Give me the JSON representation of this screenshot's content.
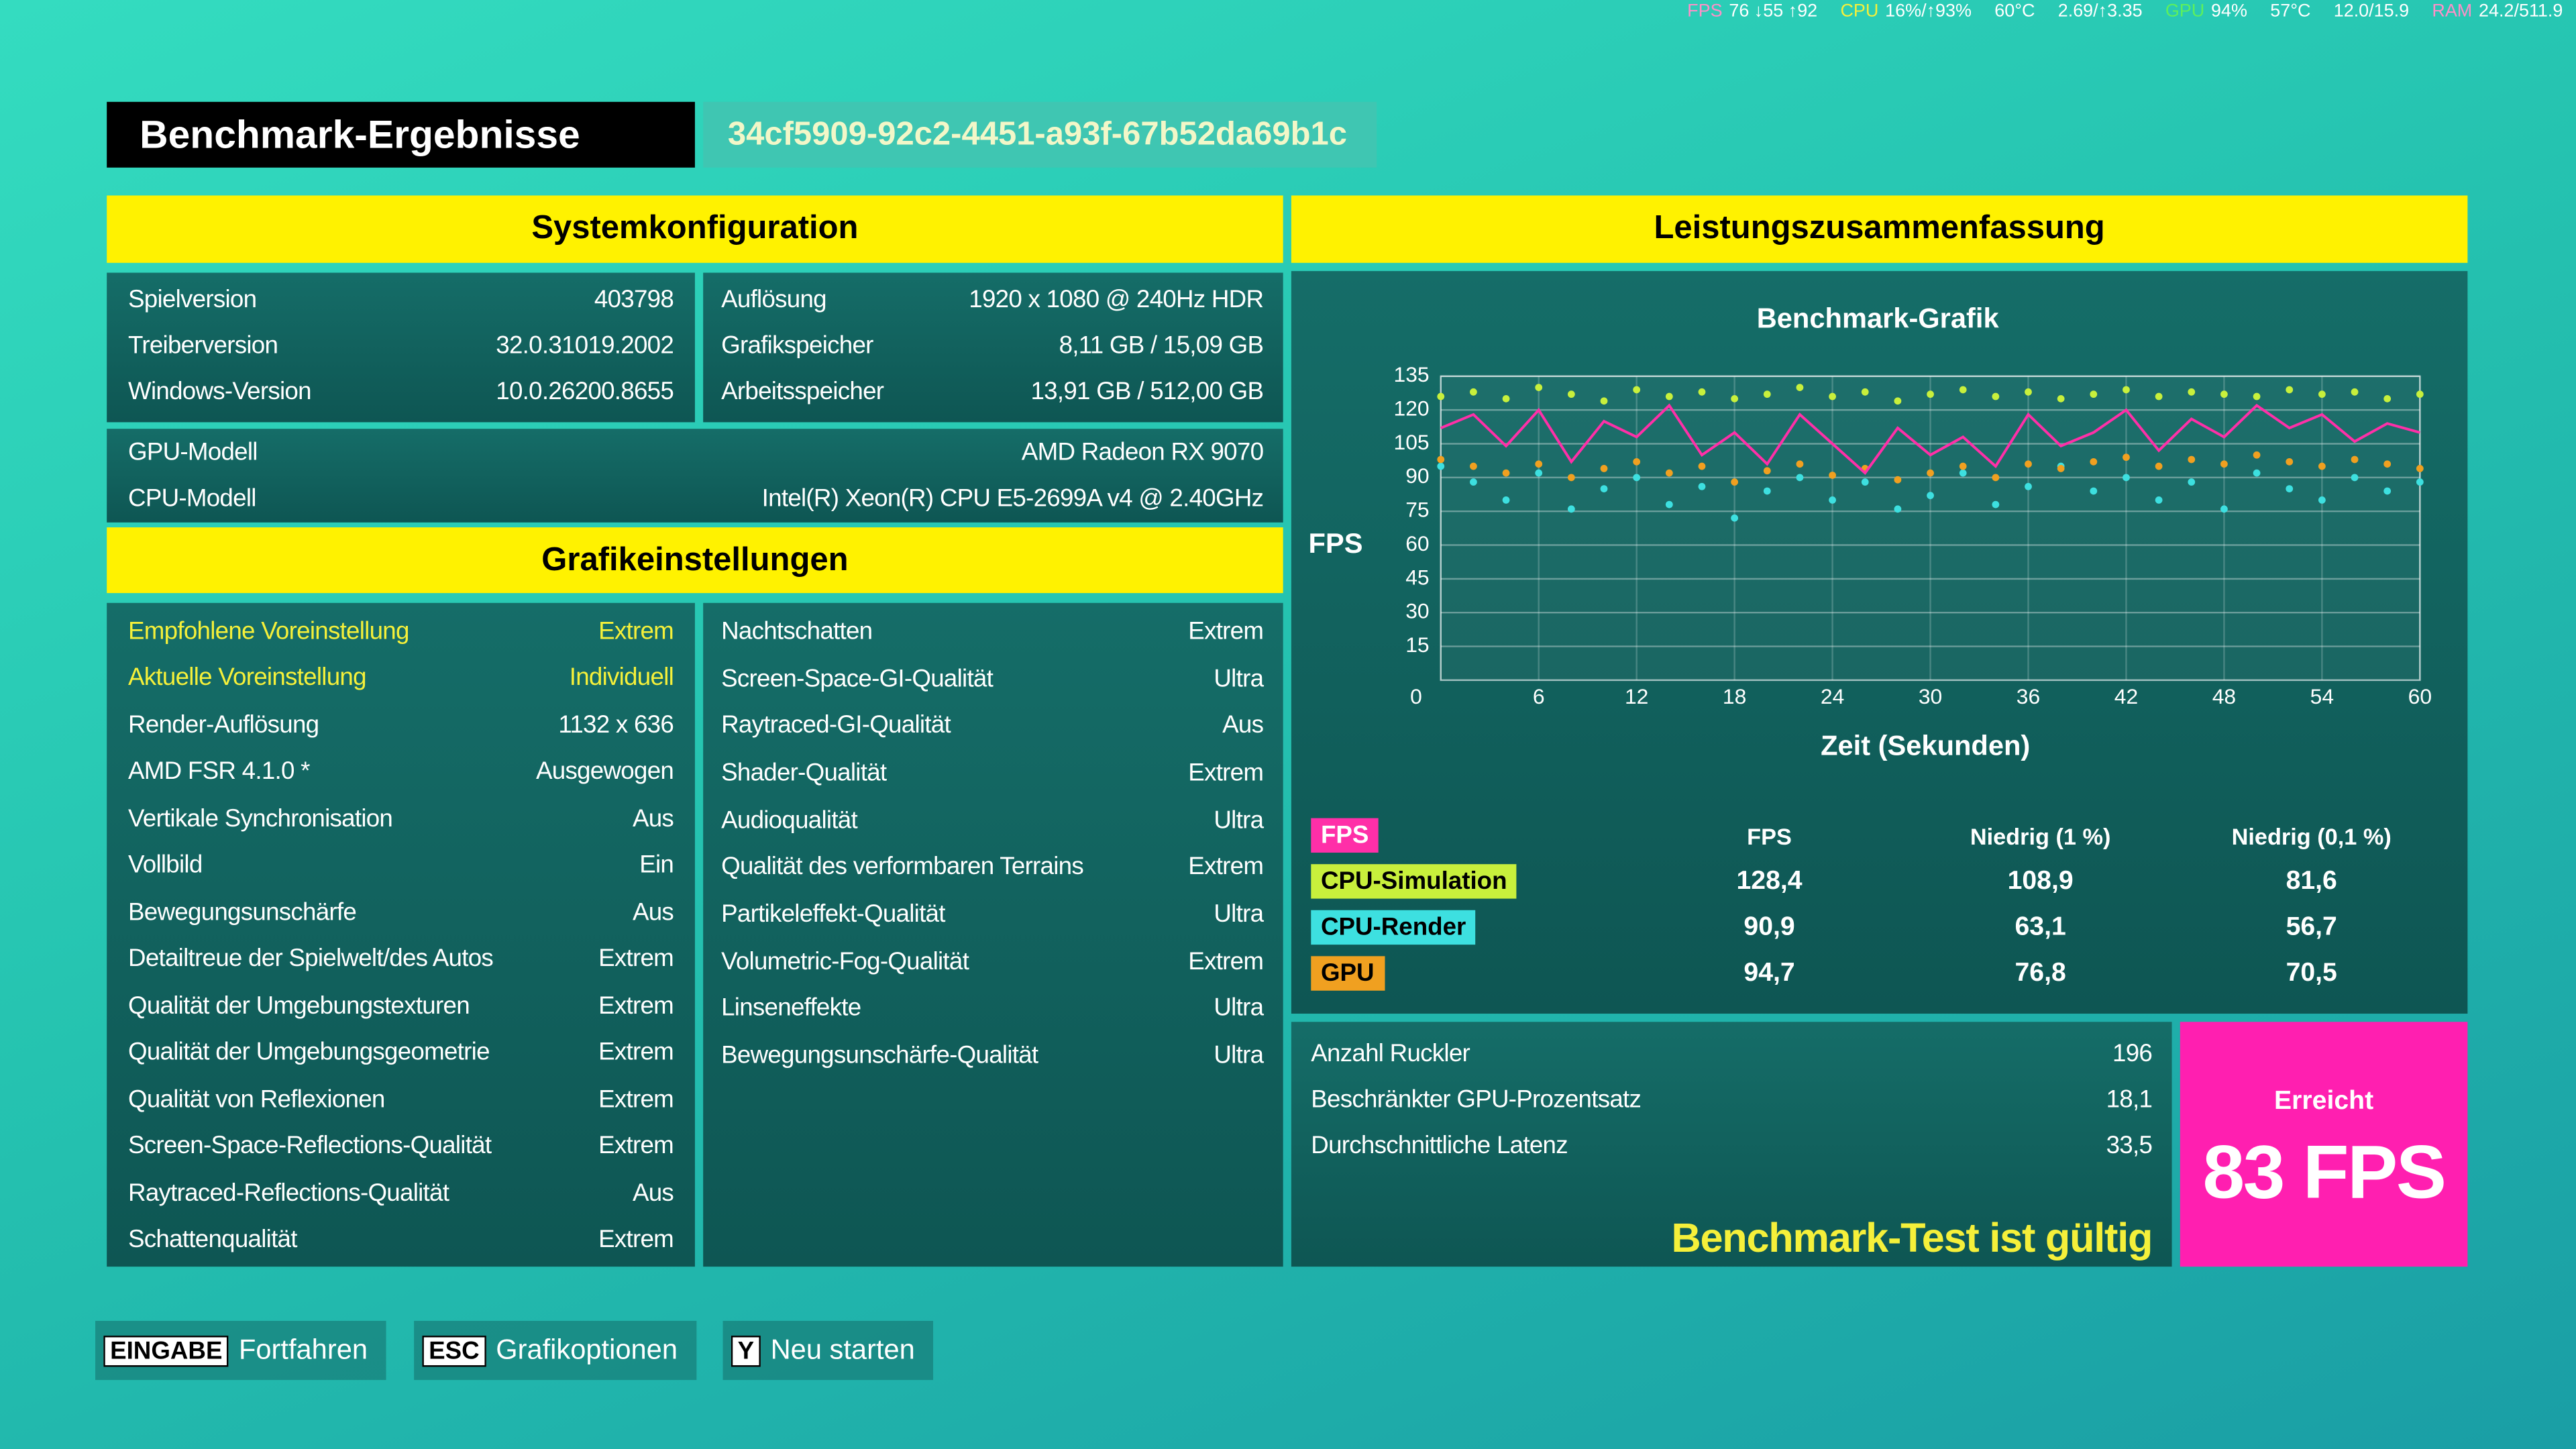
{
  "overlay": [
    {
      "label": "FPS",
      "text": "76  ↓55 ↑92"
    },
    {
      "label": "CPU",
      "text": "16%/↑93%"
    },
    {
      "text": "60°C"
    },
    {
      "text": "2.69/↑3.35"
    },
    {
      "label": "GPU",
      "text": "94%"
    },
    {
      "text": "57°C"
    },
    {
      "text": "12.0/15.9"
    },
    {
      "label": "RAM",
      "text": "24.2/511.9"
    }
  ],
  "header": {
    "title": "Benchmark-Ergebnisse",
    "id": "34cf5909-92c2-4451-a93f-67b52da69b1c"
  },
  "system": {
    "title": "Systemkonfiguration",
    "left": [
      [
        "Spielversion",
        "403798"
      ],
      [
        "Treiberversion",
        "32.0.31019.2002"
      ],
      [
        "Windows-Version",
        "10.0.26200.8655"
      ]
    ],
    "right": [
      [
        "Auflösung",
        "1920 x 1080 @ 240Hz HDR"
      ],
      [
        "Grafikspeicher",
        "8,11 GB / 15,09 GB"
      ],
      [
        "Arbeitsspeicher",
        "13,91 GB / 512,00 GB"
      ]
    ],
    "wide": [
      [
        "GPU-Modell",
        "AMD Radeon RX 9070"
      ],
      [
        "CPU-Modell",
        "Intel(R) Xeon(R) CPU E5-2699A v4 @ 2.40GHz"
      ]
    ]
  },
  "graphics": {
    "title": "Grafikeinstellungen",
    "left": [
      [
        "Empfohlene Voreinstellung",
        "Extrem"
      ],
      [
        "Aktuelle Voreinstellung",
        "Individuell"
      ],
      [
        "Render-Auflösung",
        "1132 x 636"
      ],
      [
        "AMD FSR 4.1.0 *",
        "Ausgewogen"
      ],
      [
        "Vertikale Synchronisation",
        "Aus"
      ],
      [
        "Vollbild",
        "Ein"
      ],
      [
        "Bewegungsunschärfe",
        "Aus"
      ],
      [
        "Detailtreue der Spielwelt/des Autos",
        "Extrem"
      ],
      [
        "Qualität der Umgebungstexturen",
        "Extrem"
      ],
      [
        "Qualität der Umgebungsgeometrie",
        "Extrem"
      ],
      [
        "Qualität von Reflexionen",
        "Extrem"
      ],
      [
        "Screen-Space-Reflections-Qualität",
        "Extrem"
      ],
      [
        "Raytraced-Reflections-Qualität",
        "Aus"
      ],
      [
        "Schattenqualität",
        "Extrem"
      ]
    ],
    "right": [
      [
        "Nachtschatten",
        "Extrem"
      ],
      [
        "Screen-Space-GI-Qualität",
        "Ultra"
      ],
      [
        "Raytraced-GI-Qualität",
        "Aus"
      ],
      [
        "Shader-Qualität",
        "Extrem"
      ],
      [
        "Audioqualität",
        "Ultra"
      ],
      [
        "Qualität des verformbaren Terrains",
        "Extrem"
      ],
      [
        "Partikeleffekt-Qualität",
        "Ultra"
      ],
      [
        "Volumetric-Fog-Qualität",
        "Extrem"
      ],
      [
        "Linseneffekte",
        "Ultra"
      ],
      [
        "Bewegungsunschärfe-Qualität",
        "Ultra"
      ]
    ]
  },
  "summary": {
    "title": "Leistungszusammenfassung",
    "table": {
      "columns": [
        "FPS",
        "Niedrig (1 %)",
        "Niedrig (0,1 %)"
      ],
      "rows": [
        [
          "128,4",
          "108,9",
          "81,6"
        ],
        [
          "90,9",
          "63,1",
          "56,7"
        ],
        [
          "94,7",
          "76,8",
          "70,5"
        ]
      ]
    },
    "stats": [
      [
        "Anzahl Ruckler",
        "196"
      ],
      [
        "Beschränkter GPU-Prozentsatz",
        "18,1"
      ],
      [
        "Durchschnittliche Latenz",
        "33,5"
      ]
    ],
    "valid": "Benchmark-Test ist gültig",
    "achieved_label": "Erreicht",
    "achieved": "83 FPS"
  },
  "chart_data": {
    "type": "line",
    "title": "Benchmark-Grafik",
    "y_label": "FPS",
    "x_label": "Zeit (Sekunden)",
    "xlim": [
      0,
      60
    ],
    "xticks": [
      0,
      6,
      12,
      18,
      24,
      30,
      36,
      42,
      48,
      54,
      60
    ],
    "ylim": [
      0,
      135
    ],
    "yticks": [
      15,
      30,
      45,
      60,
      75,
      90,
      105,
      120,
      135
    ],
    "grid": true,
    "x": [
      0,
      2,
      4,
      6,
      8,
      10,
      12,
      14,
      16,
      18,
      20,
      22,
      24,
      26,
      28,
      30,
      32,
      34,
      36,
      38,
      40,
      42,
      44,
      46,
      48,
      50,
      52,
      54,
      56,
      58,
      60
    ],
    "series": [
      {
        "name": "FPS",
        "color": "#ff2fa8",
        "mode": "lines",
        "values": [
          112,
          118,
          104,
          120,
          97,
          115,
          108,
          122,
          100,
          110,
          96,
          118,
          105,
          92,
          112,
          100,
          108,
          95,
          118,
          104,
          110,
          120,
          102,
          116,
          108,
          122,
          112,
          118,
          106,
          114,
          110
        ]
      },
      {
        "name": "CPU-Simulation",
        "color": "#c8f03c",
        "mode": "markers",
        "values": [
          126,
          128,
          125,
          130,
          127,
          124,
          129,
          126,
          128,
          125,
          127,
          130,
          126,
          128,
          124,
          127,
          129,
          126,
          128,
          125,
          127,
          129,
          126,
          128,
          127,
          126,
          129,
          127,
          128,
          125,
          127
        ]
      },
      {
        "name": "CPU-Render",
        "color": "#3de0e0",
        "mode": "markers",
        "values": [
          95,
          88,
          80,
          92,
          76,
          85,
          90,
          78,
          86,
          72,
          84,
          90,
          80,
          88,
          76,
          82,
          92,
          78,
          86,
          95,
          84,
          90,
          80,
          88,
          76,
          92,
          85,
          80,
          90,
          84,
          88
        ]
      },
      {
        "name": "GPU",
        "color": "#f0a020",
        "mode": "markers",
        "values": [
          98,
          95,
          92,
          96,
          90,
          94,
          97,
          92,
          95,
          88,
          93,
          96,
          91,
          94,
          89,
          92,
          95,
          90,
          96,
          94,
          97,
          99,
          95,
          98,
          96,
          100,
          97,
          95,
          98,
          96,
          94
        ]
      }
    ]
  },
  "footer": [
    {
      "key": "EINGABE",
      "label": "Fortfahren"
    },
    {
      "key": "ESC",
      "label": "Grafikoptionen"
    },
    {
      "key": "Y",
      "label": "Neu starten"
    }
  ]
}
